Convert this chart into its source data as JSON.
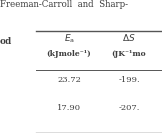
{
  "title": "Freeman-Carroll  and  Sharp-",
  "row_label": "od",
  "col1_header": "$E_{\\mathrm{a}}$",
  "col2_header": "$\\Delta S$",
  "col1_subheader": "(kJmole⁻¹)",
  "col2_subheader": "(JK⁻¹mo",
  "rows": [
    [
      "23.72",
      "-199."
    ],
    [
      "17.90",
      "-207."
    ]
  ],
  "bg_color": "#ffffff",
  "text_color": "#3d3d3d"
}
